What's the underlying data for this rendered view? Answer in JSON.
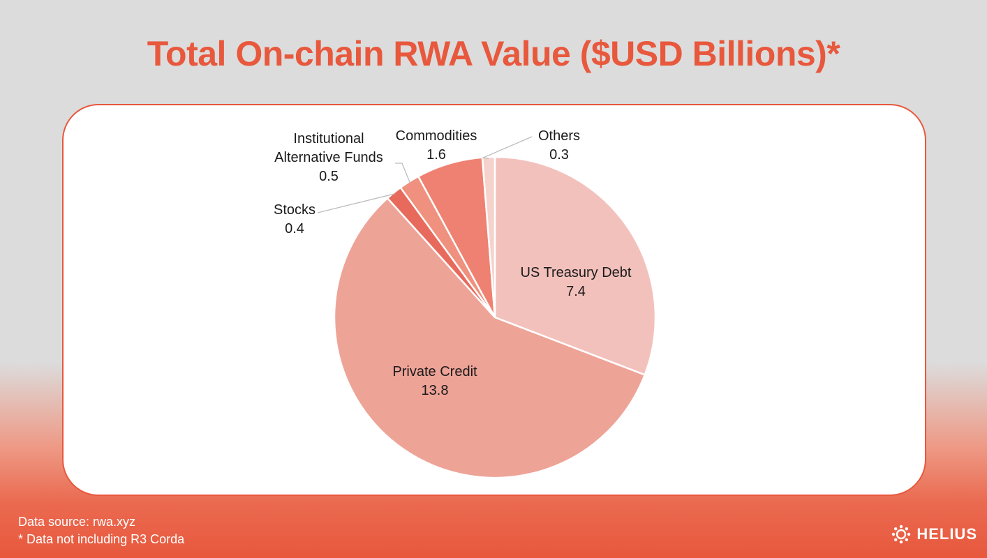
{
  "title": "Total On-chain RWA Value ($USD Billions)*",
  "footer": {
    "source": "Data source: rwa.xyz",
    "note": "* Data not including R3 Corda"
  },
  "brand": {
    "name": "HELIUS",
    "logo_icon": "sun-ring-icon"
  },
  "colors": {
    "accent": "#e8583d",
    "us_treasury": "#f3c1bc",
    "private_credit": "#eea397",
    "stocks": "#e86a5c",
    "institutional_funds": "#f0907e",
    "commodities": "#ee8171",
    "others": "#f6d2cd"
  },
  "chart_data": {
    "type": "pie",
    "slices": [
      {
        "label": "US Treasury Debt",
        "value": 7.4,
        "value_text": "7.4"
      },
      {
        "label": "Private Credit",
        "value": 13.8,
        "value_text": "13.8"
      },
      {
        "label": "Stocks",
        "value": 0.4,
        "value_text": "0.4"
      },
      {
        "label": "Institutional Alternative Funds",
        "value": 0.5,
        "value_text": "0.5"
      },
      {
        "label": "Commodities",
        "value": 1.6,
        "value_text": "1.6"
      },
      {
        "label": "Others",
        "value": 0.3,
        "value_text": "0.3"
      }
    ],
    "start_angle": "12 o'clock",
    "direction": "clockwise"
  }
}
